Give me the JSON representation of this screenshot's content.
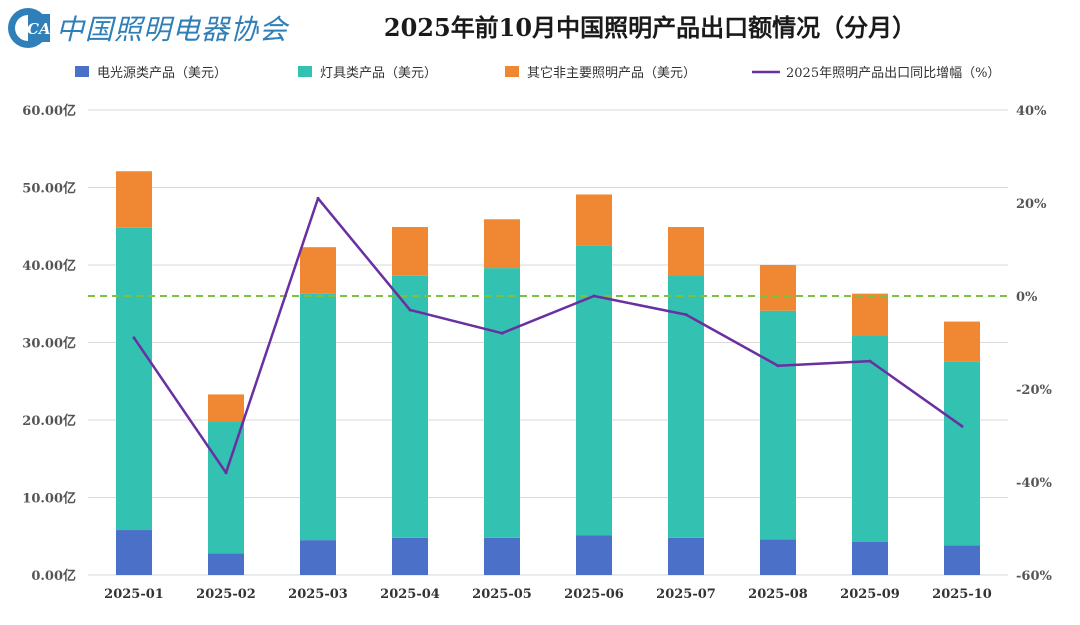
{
  "header": {
    "logo_text": "CALI",
    "org_name": "中国照明电器协会",
    "title": "2025年前10月中国照明产品出口额情况（分月）"
  },
  "colors": {
    "light_source": "#4a70c8",
    "lamps": "#33c1b1",
    "other": "#f08733",
    "growth_line": "#6a2fa0",
    "zero_line": "#7cc242",
    "grid": "#d9d9d9",
    "logo": "#2f7fb8"
  },
  "chart_data": {
    "type": "bar",
    "stacked": true,
    "title": "2025年前10月中国照明产品出口额情况（分月）",
    "categories": [
      "2025-01",
      "2025-02",
      "2025-03",
      "2025-04",
      "2025-05",
      "2025-06",
      "2025-07",
      "2025-08",
      "2025-09",
      "2025-10"
    ],
    "series": [
      {
        "name": "电光源类产品（美元）",
        "color_key": "light_source",
        "values": [
          5.8,
          2.8,
          4.5,
          4.8,
          4.8,
          5.1,
          4.8,
          4.6,
          4.3,
          3.8
        ]
      },
      {
        "name": "灯具类产品（美元）",
        "color_key": "lamps",
        "values": [
          39.0,
          17.0,
          31.8,
          33.8,
          34.8,
          37.4,
          33.9,
          29.5,
          26.6,
          23.7
        ]
      },
      {
        "name": "其它非主要照明产品（美元）",
        "color_key": "other",
        "values": [
          7.3,
          3.5,
          6.0,
          6.3,
          6.3,
          6.6,
          6.2,
          5.9,
          5.4,
          5.2
        ]
      }
    ],
    "line_series": {
      "name": "2025年照明产品出口同比增幅（%）",
      "axis": "right",
      "color_key": "growth_line",
      "values": [
        -9,
        -38,
        21,
        -3,
        -8,
        0,
        -4,
        -15,
        -14,
        -28
      ]
    },
    "left_axis": {
      "ylim": [
        0,
        60
      ],
      "ticks": [
        0,
        10,
        20,
        30,
        40,
        50,
        60
      ],
      "tick_labels": [
        "0.00亿",
        "10.00亿",
        "20.00亿",
        "30.00亿",
        "40.00亿",
        "50.00亿",
        "60.00亿"
      ]
    },
    "right_axis": {
      "ylim": [
        -60,
        40
      ],
      "ticks": [
        -60,
        -40,
        -20,
        0,
        20,
        40
      ],
      "tick_labels": [
        "-60%",
        "-40%",
        "-20%",
        "0%",
        "20%",
        "40%"
      ]
    },
    "reference_line": {
      "value": 0,
      "axis": "right",
      "style": "dashed"
    },
    "legend_position": "top"
  }
}
